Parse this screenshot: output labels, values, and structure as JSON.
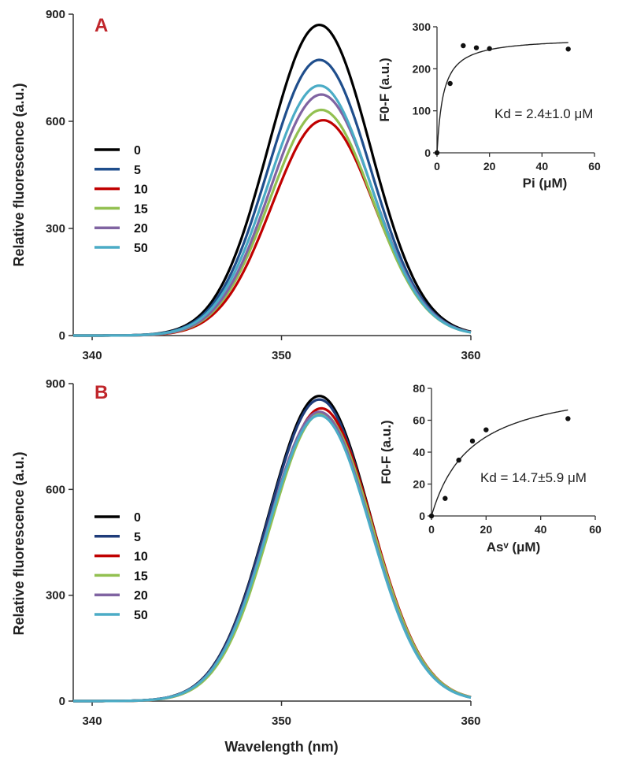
{
  "chart_data": [
    {
      "panel": "A",
      "type": "line",
      "xlabel": "",
      "ylabel": "Relative fluorescence (a.u.)",
      "xlim": [
        339,
        360
      ],
      "ylim": [
        0,
        900
      ],
      "xticks": [
        "340",
        "350",
        "360"
      ],
      "yticks": [
        "0",
        "300",
        "600",
        "900"
      ],
      "legend_position": "left",
      "series": [
        {
          "name": "0",
          "color": "#000000",
          "peak_x": 352.0,
          "peak_y": 870
        },
        {
          "name": "5",
          "color": "#1f4e8c",
          "peak_x": 352.0,
          "peak_y": 772
        },
        {
          "name": "10",
          "color": "#c00000",
          "peak_x": 352.2,
          "peak_y": 603
        },
        {
          "name": "15",
          "color": "#92c050",
          "peak_x": 352.1,
          "peak_y": 632
        },
        {
          "name": "20",
          "color": "#8064a2",
          "peak_x": 352.1,
          "peak_y": 675
        },
        {
          "name": "50",
          "color": "#4bacc6",
          "peak_x": 352.0,
          "peak_y": 700
        }
      ],
      "inset": {
        "type": "scatter",
        "xlabel": "Pi (μM)",
        "ylabel": "F0-F (a.u.)",
        "xlim": [
          0,
          60
        ],
        "ylim": [
          0,
          300
        ],
        "xticks": [
          "0",
          "20",
          "40",
          "60"
        ],
        "yticks": [
          "0",
          "100",
          "200",
          "300"
        ],
        "points": [
          [
            0,
            0
          ],
          [
            5,
            165
          ],
          [
            10,
            255
          ],
          [
            15,
            250
          ],
          [
            20,
            248
          ],
          [
            50,
            247
          ]
        ],
        "fit": {
          "model": "saturation",
          "bmax": 275,
          "kd": 2.4
        },
        "annotation": "Kd = 2.4±1.0 μM"
      }
    },
    {
      "panel": "B",
      "type": "line",
      "xlabel": "Wavelength (nm)",
      "ylabel": "Relative fluorescence (a.u.)",
      "xlim": [
        339,
        360
      ],
      "ylim": [
        0,
        900
      ],
      "xticks": [
        "340",
        "350",
        "360"
      ],
      "yticks": [
        "0",
        "300",
        "600",
        "900"
      ],
      "legend_position": "left",
      "series": [
        {
          "name": "0",
          "color": "#000000",
          "peak_x": 352.0,
          "peak_y": 865
        },
        {
          "name": "5",
          "color": "#1f3c7a",
          "peak_x": 352.0,
          "peak_y": 855
        },
        {
          "name": "10",
          "color": "#c00000",
          "peak_x": 352.1,
          "peak_y": 830
        },
        {
          "name": "15",
          "color": "#92c050",
          "peak_x": 352.1,
          "peak_y": 815
        },
        {
          "name": "20",
          "color": "#8064a2",
          "peak_x": 352.0,
          "peak_y": 820
        },
        {
          "name": "50",
          "color": "#4bacc6",
          "peak_x": 352.0,
          "peak_y": 810
        }
      ],
      "inset": {
        "type": "scatter",
        "xlabel": "Asᵛ (μM)",
        "ylabel": "F0-F (a.u.)",
        "xlim": [
          0,
          60
        ],
        "ylim": [
          0,
          80
        ],
        "xticks": [
          "0",
          "20",
          "40",
          "60"
        ],
        "yticks": [
          "0",
          "20",
          "40",
          "60",
          "80"
        ],
        "points": [
          [
            0,
            0
          ],
          [
            5,
            11
          ],
          [
            10,
            35
          ],
          [
            15,
            47
          ],
          [
            20,
            54
          ],
          [
            50,
            61
          ]
        ],
        "fit": {
          "model": "saturation",
          "bmax": 86,
          "kd": 14.7
        },
        "annotation": "Kd = 14.7±5.9 μM"
      }
    }
  ]
}
